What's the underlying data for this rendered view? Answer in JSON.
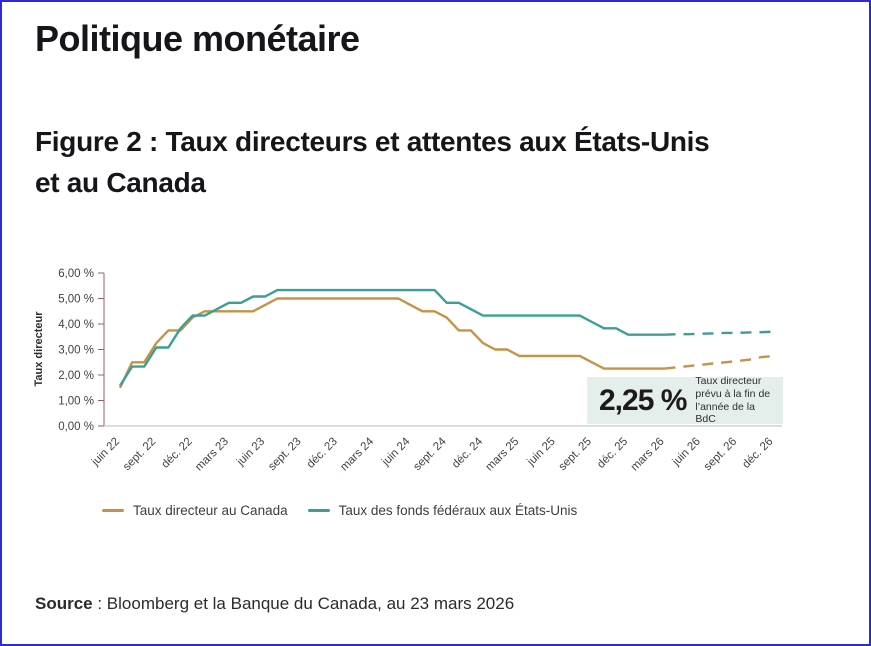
{
  "page": {
    "title": "Politique monétaire",
    "border_color": "#2d2bd2"
  },
  "figure": {
    "title": "Figure 2 : Taux directeurs et attentes aux États-Unis et au Canada"
  },
  "chart_data": {
    "type": "line",
    "ylabel": "Taux directeur",
    "ylim": [
      0,
      6
    ],
    "grid": false,
    "y_tick_labels": [
      "0,00 %",
      "1,00 %",
      "2,00 %",
      "3,00 %",
      "4,00 %",
      "5,00 %",
      "6,00 %"
    ],
    "x_tick_labels": [
      "juin 22",
      "sept. 22",
      "déc. 22",
      "mars 23",
      "juin 23",
      "sept. 23",
      "déc. 23",
      "mars 24",
      "juin 24",
      "sept. 24",
      "déc. 24",
      "mars 25",
      "juin 25",
      "sept. 25",
      "déc. 25",
      "mars 26",
      "juin 26",
      "sept. 26",
      "déc. 26"
    ],
    "x_unit": "monthly points from juin 2022 to déc. 2026, ticks every 3 months",
    "dashed_from_index": 45,
    "dashed_meaning": "attentes (forecast)",
    "series": [
      {
        "name": "Taux directeur au Canada",
        "color": "#c79245",
        "values": [
          1.5,
          2.5,
          2.5,
          3.25,
          3.75,
          3.75,
          4.25,
          4.5,
          4.5,
          4.5,
          4.5,
          4.5,
          4.75,
          5.0,
          5.0,
          5.0,
          5.0,
          5.0,
          5.0,
          5.0,
          5.0,
          5.0,
          5.0,
          5.0,
          4.75,
          4.5,
          4.5,
          4.25,
          3.75,
          3.75,
          3.25,
          3.0,
          3.0,
          2.75,
          2.75,
          2.75,
          2.75,
          2.75,
          2.75,
          2.5,
          2.25,
          2.25,
          2.25,
          2.25,
          2.25,
          2.25,
          2.3,
          2.35,
          2.4,
          2.45,
          2.5,
          2.55,
          2.6,
          2.7,
          2.75
        ]
      },
      {
        "name": "Taux des fonds fédéraux aux États-Unis",
        "color": "#3aa096",
        "values": [
          1.58,
          2.33,
          2.33,
          3.08,
          3.08,
          3.83,
          4.33,
          4.33,
          4.58,
          4.83,
          4.83,
          5.08,
          5.08,
          5.33,
          5.33,
          5.33,
          5.33,
          5.33,
          5.33,
          5.33,
          5.33,
          5.33,
          5.33,
          5.33,
          5.33,
          5.33,
          5.33,
          4.83,
          4.83,
          4.58,
          4.33,
          4.33,
          4.33,
          4.33,
          4.33,
          4.33,
          4.33,
          4.33,
          4.33,
          4.08,
          3.83,
          3.83,
          3.58,
          3.58,
          3.58,
          3.58,
          3.6,
          3.6,
          3.62,
          3.63,
          3.65,
          3.65,
          3.67,
          3.68,
          3.7
        ]
      }
    ],
    "annotation": {
      "value": "2,25 %",
      "text": "Taux directeur prévu à la fin de l’année de la BdC",
      "bg": "#e4efec"
    },
    "axis_colors": {
      "y_axis": "#9b5c63",
      "x_axis": "#c6c6c6",
      "tick_text": "#454046"
    }
  },
  "legend": {
    "items": [
      {
        "label": "Taux directeur au Canada",
        "color": "#c79245"
      },
      {
        "label": "Taux des fonds fédéraux aux États-Unis",
        "color": "#3aa096"
      }
    ]
  },
  "source": {
    "label": "Source",
    "text": " : Bloomberg et la Banque du Canada, au 23 mars 2026"
  }
}
